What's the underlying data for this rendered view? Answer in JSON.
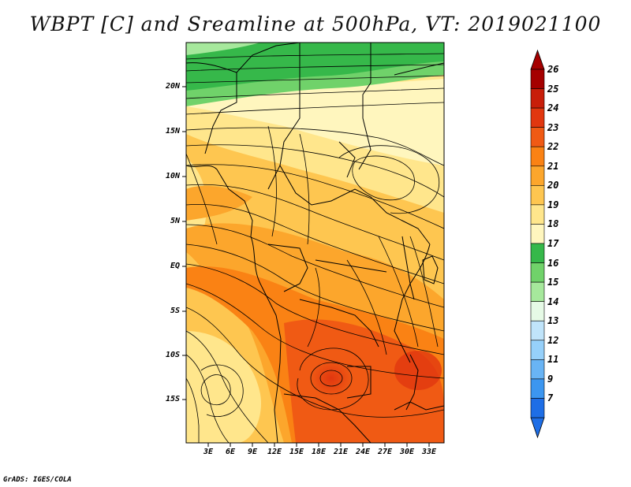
{
  "title": "WBPT [C] and Sreamline at 500hPa, VT: 2019021100",
  "credit": "GrADS: IGES/COLA",
  "map": {
    "lat_ticks": [
      "20N",
      "15N",
      "10N",
      "5N",
      "EQ",
      "5S",
      "10S",
      "15S"
    ],
    "lon_ticks": [
      "3E",
      "6E",
      "9E",
      "12E",
      "15E",
      "18E",
      "21E",
      "24E",
      "27E",
      "30E",
      "33E"
    ]
  },
  "colorbar": {
    "labels": [
      "26",
      "25",
      "24",
      "23",
      "22",
      "21",
      "20",
      "19",
      "18",
      "17",
      "16",
      "15",
      "14",
      "13",
      "12",
      "11",
      "9",
      "7"
    ],
    "colors": [
      "#a50000",
      "#c81e0a",
      "#e1370f",
      "#f05a14",
      "#fa8214",
      "#fca62c",
      "#fec650",
      "#ffe68c",
      "#fff6be",
      "#36b84a",
      "#70d26a",
      "#a6e89c",
      "#e6fae6",
      "#c0e4fa",
      "#96d0fa",
      "#69b4f5",
      "#3c96f0",
      "#1e6ee6"
    ]
  }
}
